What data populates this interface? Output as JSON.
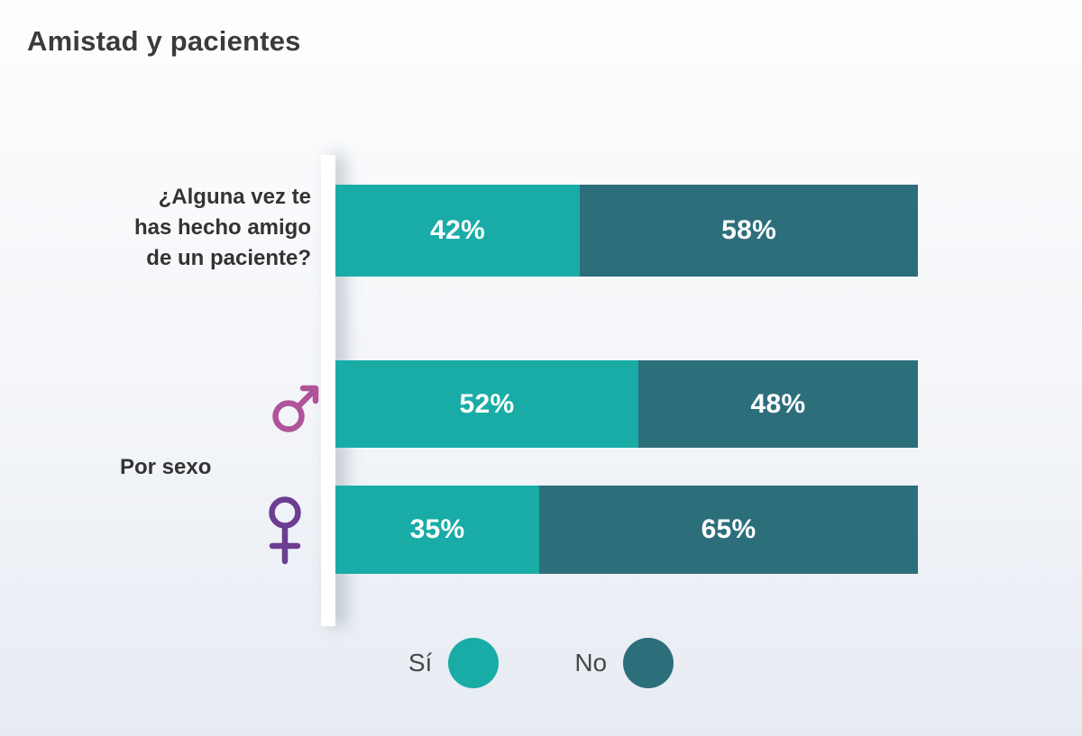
{
  "title": "Amistad y pacientes",
  "labels": {
    "question": "¿Alguna vez te\nhas hecho amigo\nde un paciente?",
    "group": "Por sexo"
  },
  "colors": {
    "yes": "#19ACA6",
    "no": "#2D6E7B",
    "male_icon": "#B05499",
    "female_icon": "#6C3D91",
    "title_text": "#3B3B3B",
    "value_text": "#FFFFFF"
  },
  "legend": {
    "position": "bottom",
    "items": [
      {
        "label": "Sí",
        "color": "#19ACA6"
      },
      {
        "label": "No",
        "color": "#2D6E7B"
      }
    ]
  },
  "chart_data": {
    "type": "bar",
    "orientation": "horizontal",
    "stacked": true,
    "title": "Amistad y pacientes",
    "group_label": "Por sexo",
    "unit": "%",
    "x_range": [
      0,
      100
    ],
    "legend": [
      "Sí",
      "No"
    ],
    "legend_position": "bottom",
    "series_names": [
      "Sí",
      "No"
    ],
    "rows": [
      {
        "category": "¿Alguna vez te has hecho amigo de un paciente?",
        "icon": null,
        "yes": 42,
        "no": 58,
        "yes_label": "42%",
        "no_label": "58%"
      },
      {
        "category": "male-icon",
        "icon": "male-icon",
        "glyph": "♂",
        "yes": 52,
        "no": 48,
        "yes_label": "52%",
        "no_label": "48%"
      },
      {
        "category": "female-icon",
        "icon": "female-icon",
        "glyph": "♀",
        "yes": 35,
        "no": 65,
        "yes_label": "35%",
        "no_label": "65%"
      }
    ]
  }
}
